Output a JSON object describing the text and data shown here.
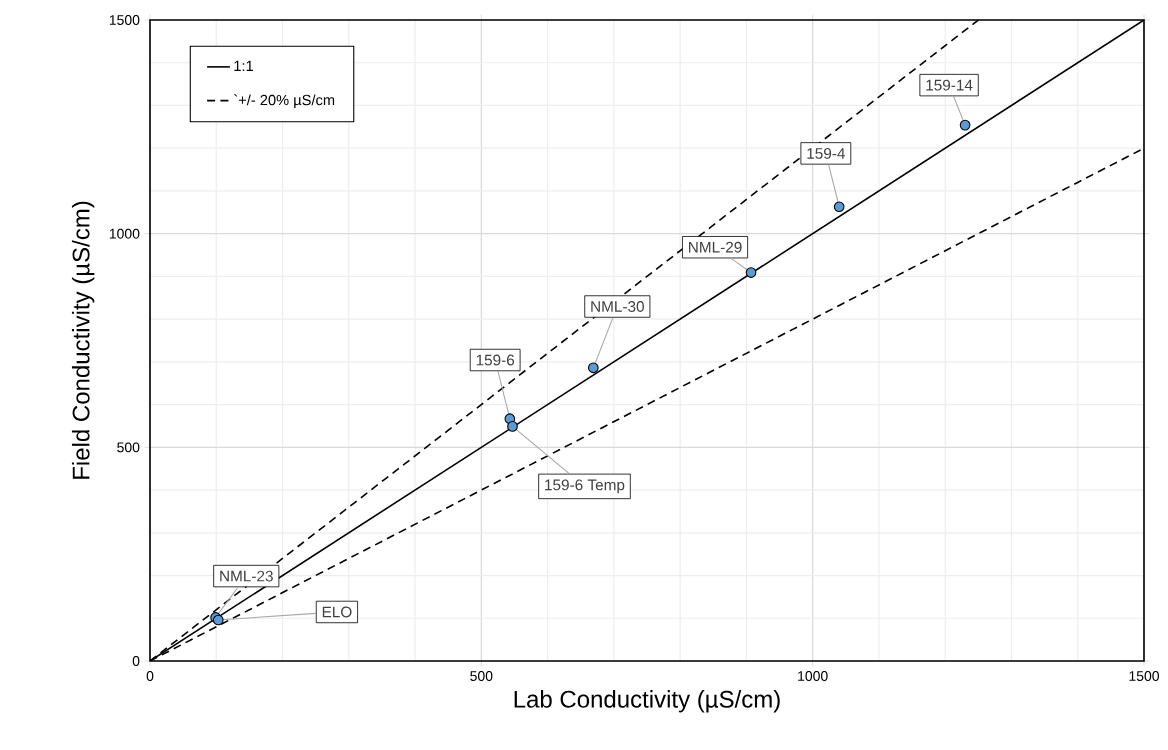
{
  "chart_data": {
    "type": "scatter",
    "xlabel": "Lab Conductivity (µS/cm)",
    "ylabel": "Field Conductivity (µS/cm)",
    "xlim": [
      0,
      1500
    ],
    "ylim": [
      0,
      1500
    ],
    "xticks": [
      0,
      500,
      1000,
      1500
    ],
    "yticks": [
      0,
      500,
      1000,
      1500
    ],
    "grid": true,
    "legend": "top left",
    "series": [
      {
        "name": "1:1",
        "type": "line",
        "color": "#000000",
        "line_style": "solid",
        "marker": "none",
        "x": [
          0,
          1500
        ],
        "values": [
          0,
          1500
        ]
      },
      {
        "name": "`+/- 20% µS/cm",
        "type": "line",
        "color": "#000000",
        "line_style": "dashed",
        "marker": "none",
        "x": [
          0,
          1250
        ],
        "values": [
          0,
          1500
        ]
      },
      {
        "type": "line",
        "color": "#000000",
        "line_style": "dashed",
        "marker": "none",
        "x": [
          0,
          1500
        ],
        "values": [
          0,
          1200
        ]
      },
      {
        "color": "#5b9bd5",
        "marker": "circle",
        "x": [
          99,
          103,
          543,
          547,
          669,
          907,
          1040,
          1230
        ],
        "values": [
          102,
          96,
          567,
          549,
          686,
          909,
          1063,
          1254
        ]
      }
    ],
    "annotations": [
      {
        "text": "NML-23",
        "x": 99,
        "y": 102
      },
      {
        "text": "ELO",
        "x": 103,
        "y": 96
      },
      {
        "text": "159-6",
        "x": 543,
        "y": 567
      },
      {
        "text": "159-6 Temp",
        "x": 547,
        "y": 549
      },
      {
        "text": "NML-30",
        "x": 669,
        "y": 686
      },
      {
        "text": "NML-29",
        "x": 907,
        "y": 909
      },
      {
        "text": "159-4",
        "x": 1040,
        "y": 1063
      },
      {
        "text": "159-14",
        "x": 1230,
        "y": 1254
      }
    ]
  }
}
